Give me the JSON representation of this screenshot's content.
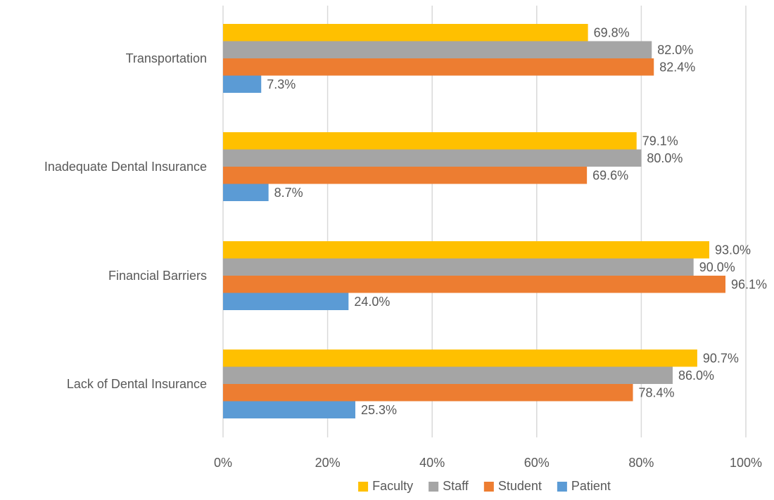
{
  "chart_data": {
    "type": "bar",
    "orientation": "horizontal",
    "title": "",
    "xlabel": "",
    "ylabel": "",
    "xlim": [
      0,
      100
    ],
    "x_ticks": [
      "0%",
      "20%",
      "40%",
      "60%",
      "80%",
      "100%"
    ],
    "grid": true,
    "legend_position": "bottom",
    "categories": [
      "Transportation",
      "Inadequate Dental Insurance",
      "Financial Barriers",
      "Lack of Dental Insurance"
    ],
    "series": [
      {
        "name": "Faculty",
        "color": "#FFC000",
        "values": [
          69.8,
          79.1,
          93.0,
          90.7
        ],
        "labels": [
          "69.8%",
          "79.1%",
          "93.0%",
          "90.7%"
        ]
      },
      {
        "name": "Staff",
        "color": "#A5A5A5",
        "values": [
          82.0,
          80.0,
          90.0,
          86.0
        ],
        "labels": [
          "82.0%",
          "80.0%",
          "90.0%",
          "86.0%"
        ]
      },
      {
        "name": "Student",
        "color": "#ED7D31",
        "values": [
          82.4,
          69.6,
          96.1,
          78.4
        ],
        "labels": [
          "82.4%",
          "69.6%",
          "96.1%",
          "78.4%"
        ]
      },
      {
        "name": "Patient",
        "color": "#5B9BD5",
        "values": [
          7.3,
          8.7,
          24.0,
          25.3
        ],
        "labels": [
          "7.3%",
          "8.7%",
          "24.0%",
          "25.3%"
        ]
      }
    ]
  }
}
